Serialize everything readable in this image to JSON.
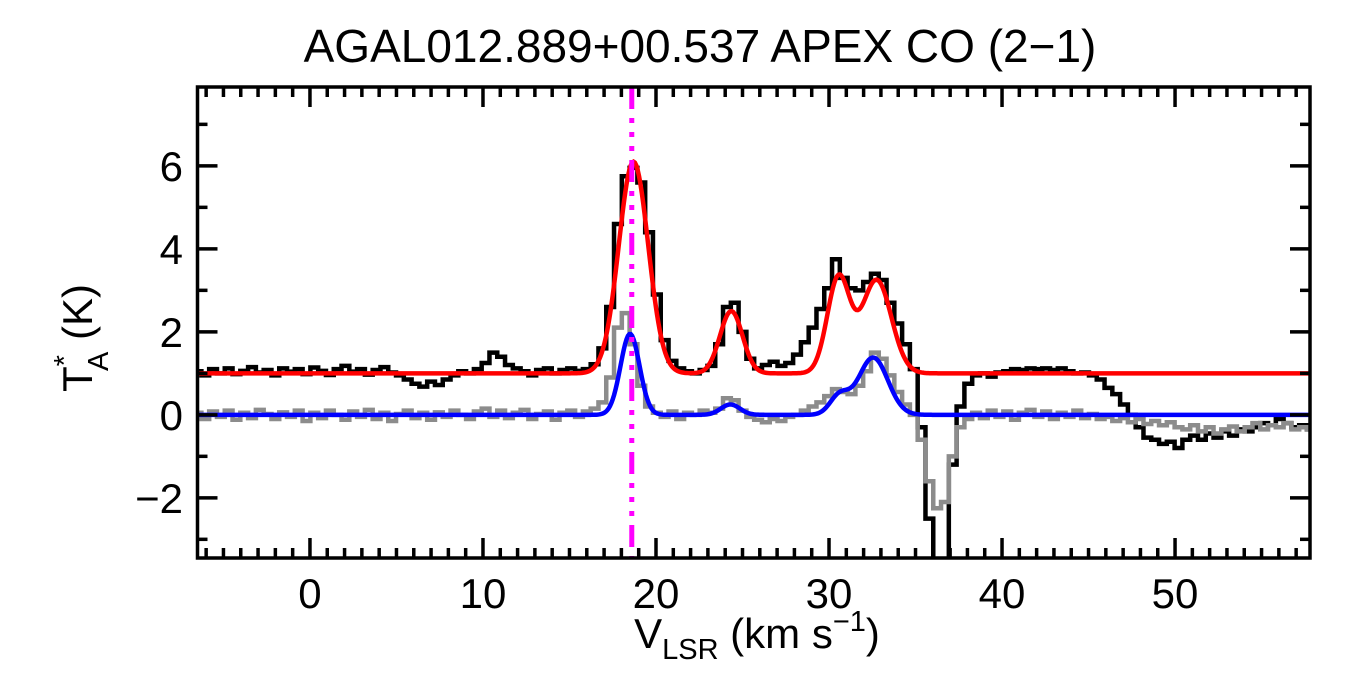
{
  "chart_data": {
    "type": "line",
    "title": "AGAL012.889+00.537  APEX CO (2−1)",
    "xlabel": "V_LSR (km s^-1)",
    "xlabel_parts": {
      "base": "V",
      "sub": "LSR",
      "mid": " (km s",
      "sup": "−1",
      "end": ")"
    },
    "ylabel": "T_A^* (K)",
    "ylabel_parts": {
      "base": "T",
      "sup": "*",
      "sub": "A",
      "end": " (K)"
    },
    "xlim": [
      -6.5,
      57.8
    ],
    "ylim": [
      -3.45,
      7.9
    ],
    "x_major_ticks": [
      0,
      10,
      20,
      30,
      40,
      50
    ],
    "x_minor_step": 1,
    "y_major_ticks": [
      -2,
      0,
      2,
      4,
      6
    ],
    "y_minor_step": 1,
    "grid": false,
    "legend": false,
    "background": "#ffffff",
    "axis_color": "#000000",
    "marker_line": {
      "name": "systemic-velocity-marker",
      "x": 18.6,
      "color": "#ff00ff",
      "style": "long-dash-dot-dot-dot"
    },
    "series": [
      {
        "name": "observed-spectrum-offset",
        "kind": "histogram",
        "color": "#000000",
        "line_width": 4.5,
        "v0": -6.5,
        "dv": 0.45,
        "values": [
          1.05,
          0.95,
          1.1,
          1.0,
          1.12,
          0.98,
          1.06,
          1.15,
          1.02,
          1.08,
          0.95,
          1.12,
          1.04,
          1.1,
          0.98,
          1.14,
          1.06,
          0.96,
          1.1,
          1.18,
          1.04,
          1.1,
          0.97,
          1.08,
          1.15,
          1.02,
          0.95,
          0.85,
          0.75,
          0.68,
          0.8,
          0.72,
          0.85,
          0.95,
          1.05,
          1.0,
          1.1,
          1.25,
          1.5,
          1.4,
          1.2,
          1.12,
          1.05,
          0.95,
          1.08,
          1.12,
          1.0,
          1.08,
          1.12,
          1.06,
          1.1,
          1.22,
          1.6,
          2.6,
          4.6,
          5.75,
          5.95,
          5.6,
          4.4,
          2.9,
          1.8,
          1.3,
          1.12,
          1.05,
          1.0,
          1.08,
          1.18,
          1.7,
          2.6,
          2.7,
          2.0,
          1.35,
          1.12,
          1.2,
          1.28,
          1.18,
          1.25,
          1.45,
          1.75,
          2.1,
          2.55,
          3.05,
          3.75,
          3.3,
          3.05,
          3.0,
          3.2,
          3.4,
          3.25,
          2.7,
          2.2,
          1.7,
          1.1,
          -0.3,
          -2.5,
          -3.6,
          -3.6,
          -1.2,
          0.2,
          0.75,
          0.95,
          1.0,
          0.92,
          1.02,
          1.05,
          1.1,
          1.08,
          1.12,
          1.1,
          1.12,
          1.08,
          1.12,
          1.05,
          1.0,
          1.02,
          0.95,
          0.85,
          0.65,
          0.5,
          0.25,
          0.0,
          -0.3,
          -0.55,
          -0.6,
          -0.7,
          -0.65,
          -0.8,
          -0.6,
          -0.5,
          -0.6,
          -0.45,
          -0.55,
          -0.4,
          -0.5,
          -0.35,
          -0.4,
          -0.3,
          -0.2,
          -0.25,
          -0.1,
          -0.2,
          -0.3,
          -0.25,
          -0.35
        ]
      },
      {
        "name": "observed-spectrum",
        "kind": "histogram",
        "color": "#8c8c8c",
        "line_width": 4.5,
        "v0": -6.5,
        "dv": 0.45,
        "values": [
          0.05,
          -0.1,
          0.08,
          -0.05,
          0.1,
          -0.12,
          0.05,
          -0.08,
          0.12,
          0.02,
          -0.1,
          0.06,
          -0.05,
          0.1,
          -0.15,
          0.05,
          -0.08,
          0.1,
          0.0,
          -0.12,
          0.08,
          -0.05,
          0.12,
          -0.1,
          0.05,
          -0.15,
          0.02,
          0.1,
          -0.08,
          0.05,
          -0.12,
          0.06,
          -0.05,
          0.1,
          0.0,
          -0.1,
          0.08,
          0.15,
          -0.05,
          0.1,
          -0.08,
          0.05,
          0.12,
          -0.1,
          0.02,
          0.08,
          -0.12,
          0.05,
          0.1,
          -0.05,
          0.08,
          0.15,
          0.3,
          0.9,
          2.1,
          2.45,
          1.7,
          0.7,
          0.2,
          0.05,
          -0.05,
          0.08,
          -0.1,
          0.05,
          0.0,
          0.1,
          0.05,
          0.15,
          0.4,
          0.35,
          0.1,
          -0.05,
          -0.12,
          -0.18,
          -0.1,
          -0.15,
          -0.05,
          0.0,
          0.1,
          0.2,
          0.3,
          0.45,
          0.62,
          0.55,
          0.5,
          0.7,
          1.05,
          1.5,
          1.35,
          0.95,
          0.55,
          0.25,
          0.0,
          -0.6,
          -1.6,
          -2.25,
          -2.1,
          -1.0,
          -0.3,
          -0.1,
          0.05,
          -0.08,
          0.1,
          -0.05,
          0.08,
          -0.12,
          0.05,
          0.12,
          -0.05,
          0.08,
          -0.1,
          0.05,
          -0.05,
          0.1,
          -0.08,
          0.02,
          -0.1,
          -0.05,
          -0.15,
          -0.08,
          -0.18,
          -0.1,
          -0.22,
          -0.15,
          -0.25,
          -0.18,
          -0.3,
          -0.35,
          -0.25,
          -0.4,
          -0.3,
          -0.45,
          -0.35,
          -0.28,
          -0.4,
          -0.3,
          -0.2,
          -0.35,
          -0.25,
          -0.3,
          -0.2,
          -0.35,
          -0.3,
          -0.35
        ]
      },
      {
        "name": "gaussian-fit",
        "kind": "gaussian-sum",
        "color": "#0000ff",
        "line_width": 4.5,
        "baseline": 0.0,
        "components": [
          {
            "amp": 1.95,
            "center": 18.5,
            "sigma": 0.55
          },
          {
            "amp": 0.25,
            "center": 24.3,
            "sigma": 0.55
          },
          {
            "amp": 0.45,
            "center": 30.6,
            "sigma": 0.55
          },
          {
            "amp": 1.38,
            "center": 32.55,
            "sigma": 0.85
          }
        ]
      },
      {
        "name": "gaussian-fit-offset",
        "kind": "gaussian-sum",
        "color": "#ff0000",
        "line_width": 4.5,
        "baseline": 1.0,
        "components": [
          {
            "amp": 5.1,
            "center": 18.7,
            "sigma": 0.85
          },
          {
            "amp": 1.5,
            "center": 24.35,
            "sigma": 0.65
          },
          {
            "amp": 2.3,
            "center": 30.55,
            "sigma": 0.65
          },
          {
            "amp": 2.25,
            "center": 32.75,
            "sigma": 0.85
          }
        ]
      }
    ]
  }
}
